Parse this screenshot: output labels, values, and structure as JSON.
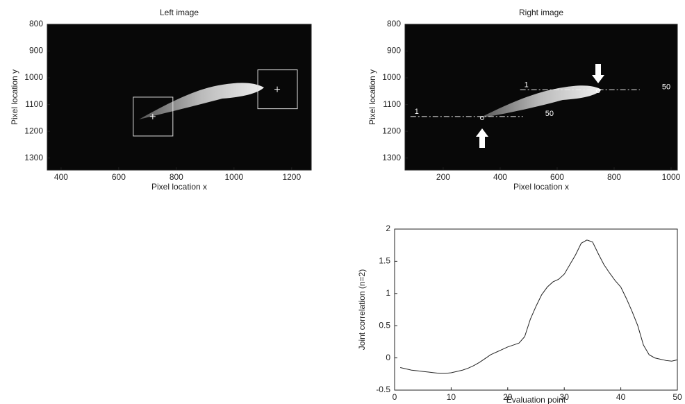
{
  "chart_data": [
    {
      "type": "image",
      "title": "Left image",
      "x_label": "Pixel location x",
      "y_label": "Pixel location y",
      "xlim": [
        352,
        1268
      ],
      "ylim": [
        1345,
        800
      ],
      "xticks": [
        400,
        600,
        800,
        1000,
        1200
      ],
      "yticks": [
        800,
        900,
        1000,
        1100,
        1200,
        1300
      ],
      "markers": {
        "x": [
          718,
          1150
        ],
        "y": [
          1145,
          1043
        ]
      }
    },
    {
      "type": "image",
      "title": "Right image",
      "x_label": "Pixel location x",
      "y_label": "Pixel location y",
      "xlim": [
        66,
        1022
      ],
      "ylim": [
        1345,
        800
      ],
      "xticks": [
        200,
        400,
        600,
        800,
        1000
      ],
      "yticks": [
        800,
        900,
        1000,
        1100,
        1200,
        1300
      ],
      "lines": [
        {
          "x": [
            470,
            890
          ],
          "y": [
            1045,
            1045
          ],
          "labels": [
            "1",
            "50"
          ]
        },
        {
          "x": [
            85,
            480
          ],
          "y": [
            1145,
            1145
          ],
          "labels": [
            "1",
            "50"
          ]
        }
      ]
    },
    {
      "type": "line",
      "x_label": "Evaluation point",
      "y_label": "Joint correlation (n=2)",
      "xlim": [
        0,
        50
      ],
      "ylim": [
        -0.5,
        2
      ],
      "xticks": [
        0,
        10,
        20,
        30,
        40,
        50
      ],
      "yticks": [
        -0.5,
        0,
        0.5,
        1,
        1.5,
        2
      ],
      "x": [
        1,
        2,
        3,
        4,
        5,
        6,
        7,
        8,
        9,
        10,
        11,
        12,
        13,
        14,
        15,
        16,
        17,
        18,
        19,
        20,
        21,
        22,
        23,
        24,
        25,
        26,
        27,
        28,
        29,
        30,
        31,
        32,
        33,
        34,
        35,
        36,
        37,
        38,
        39,
        40,
        41,
        42,
        43,
        44,
        45,
        46,
        47,
        48,
        49,
        50
      ],
      "series": [
        {
          "color": "#222222",
          "values": [
            -0.15,
            -0.17,
            -0.19,
            -0.2,
            -0.21,
            -0.22,
            -0.23,
            -0.24,
            -0.24,
            -0.23,
            -0.21,
            -0.19,
            -0.16,
            -0.12,
            -0.07,
            -0.01,
            0.05,
            0.09,
            0.13,
            0.17,
            0.2,
            0.23,
            0.33,
            0.6,
            0.8,
            0.98,
            1.1,
            1.18,
            1.22,
            1.3,
            1.45,
            1.6,
            1.78,
            1.83,
            1.8,
            1.62,
            1.45,
            1.32,
            1.2,
            1.1,
            0.92,
            0.72,
            0.5,
            0.2,
            0.05,
            0.0,
            -0.02,
            -0.04,
            -0.05,
            -0.03
          ]
        }
      ]
    }
  ]
}
